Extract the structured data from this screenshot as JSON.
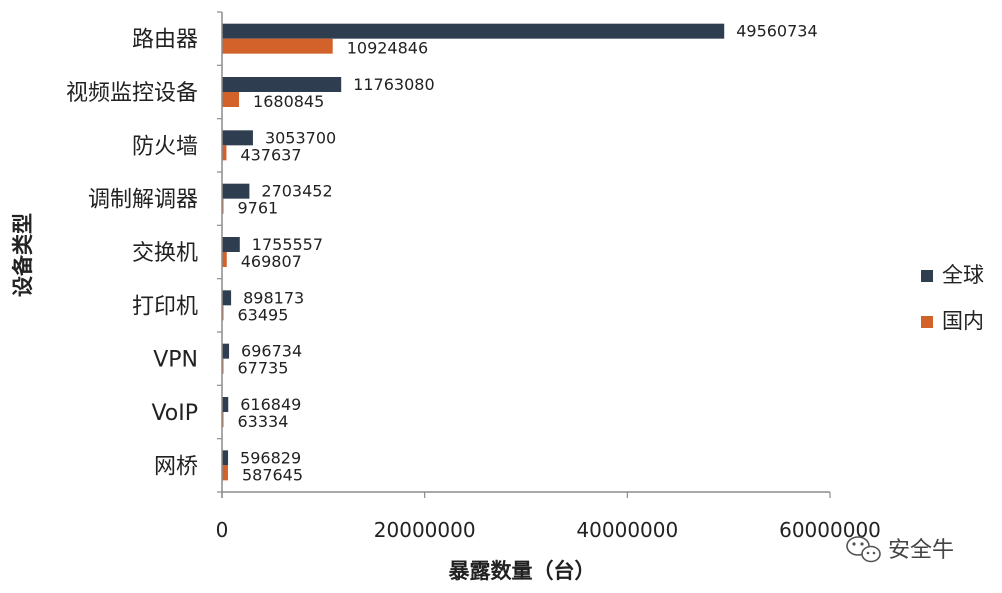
{
  "chart_data": {
    "type": "bar",
    "orientation": "horizontal",
    "categories": [
      "路由器",
      "视频监控设备",
      "防火墙",
      "调制解调器",
      "交换机",
      "打印机",
      "VPN",
      "VoIP",
      "网桥"
    ],
    "series": [
      {
        "name": "全球",
        "color": "#2e3d4f",
        "values": [
          49560734,
          11763080,
          3053700,
          2703452,
          1755557,
          898173,
          696734,
          616849,
          596829
        ]
      },
      {
        "name": "国内",
        "color": "#d2622a",
        "values": [
          10924846,
          1680845,
          437637,
          9761,
          469807,
          63495,
          67735,
          63334,
          587645
        ]
      }
    ],
    "xlabel": "暴露数量（台）",
    "ylabel": "设备类型",
    "xlim": [
      0,
      60000000
    ],
    "xticks": [
      0,
      20000000,
      40000000,
      60000000
    ],
    "grid": false,
    "legend_position": "right"
  },
  "watermark": {
    "text": "安全牛",
    "icon": "wechat-icon"
  }
}
